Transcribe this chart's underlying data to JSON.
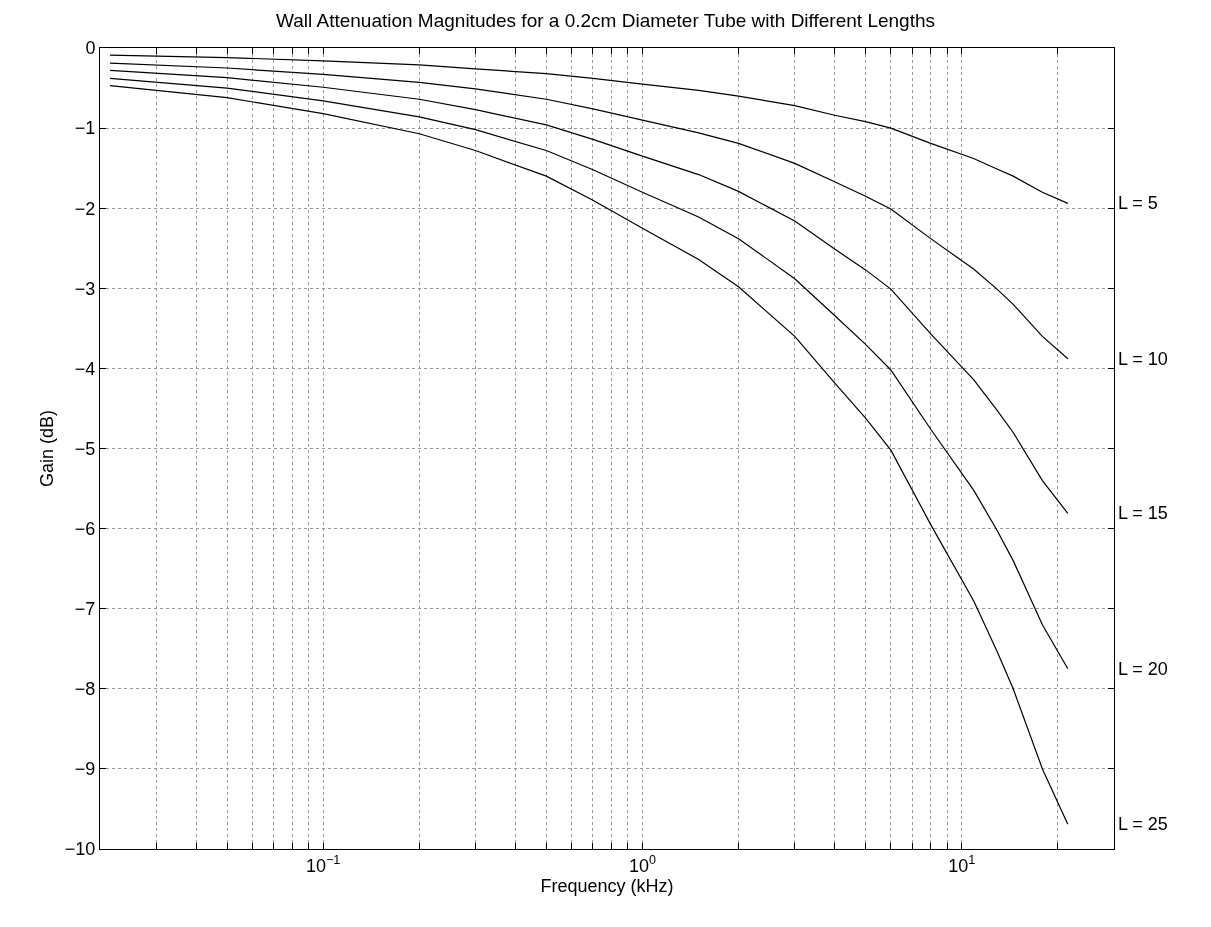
{
  "chart_data": {
    "type": "line",
    "title": "Wall Attenuation Magnitudes for a 0.2cm Diameter Tube with Different Lengths",
    "xlabel": "Frequency (kHz)",
    "ylabel": "Gain (dB)",
    "log": "x",
    "grid": true,
    "line_style": "solid",
    "marker": "none",
    "legend": "right",
    "x": [
      0.0215,
      0.05,
      0.1,
      0.2,
      0.3,
      0.5,
      0.7,
      1,
      1.5,
      2,
      3,
      4,
      5,
      6,
      8,
      10.9,
      12.9,
      14.5,
      17.9,
      21.5
    ],
    "xlim": [
      0.02,
      30
    ],
    "ylim": [
      -10,
      0
    ],
    "yticks": [
      -10,
      -9,
      -8,
      -7,
      -6,
      -5,
      -4,
      -3,
      -2,
      -1,
      0
    ],
    "xticks": [
      {
        "value": 0.03,
        "label": null
      },
      {
        "value": 0.04,
        "label": null
      },
      {
        "value": 0.05,
        "label": null
      },
      {
        "value": 0.06,
        "label": null
      },
      {
        "value": 0.07,
        "label": null
      },
      {
        "value": 0.08,
        "label": null
      },
      {
        "value": 0.09,
        "label": null
      },
      {
        "value": 0.1,
        "label": "10$^{−1}$"
      },
      {
        "value": 0.2,
        "label": null
      },
      {
        "value": 0.3,
        "label": null
      },
      {
        "value": 0.4,
        "label": null
      },
      {
        "value": 0.5,
        "label": null
      },
      {
        "value": 0.6,
        "label": null
      },
      {
        "value": 0.7,
        "label": null
      },
      {
        "value": 0.8,
        "label": null
      },
      {
        "value": 0.9,
        "label": null
      },
      {
        "value": 1,
        "label": "10$^{0}$"
      },
      {
        "value": 2,
        "label": null
      },
      {
        "value": 3,
        "label": null
      },
      {
        "value": 4,
        "label": null
      },
      {
        "value": 5,
        "label": null
      },
      {
        "value": 6,
        "label": null
      },
      {
        "value": 7,
        "label": null
      },
      {
        "value": 8,
        "label": null
      },
      {
        "value": 9,
        "label": null
      },
      {
        "value": 10,
        "label": "10$^{1}$"
      },
      {
        "value": 20,
        "label": null
      }
    ],
    "series": [
      {
        "name": "L = 5",
        "color": "#000000",
        "values": [
          -0.09,
          -0.12,
          -0.16,
          -0.21,
          -0.26,
          -0.32,
          -0.38,
          -0.45,
          -0.53,
          -0.6,
          -0.72,
          -0.84,
          -0.92,
          -1.0,
          -1.19,
          -1.38,
          -1.51,
          -1.6,
          -1.8,
          -1.94
        ]
      },
      {
        "name": "L = 10",
        "color": "#000000",
        "values": [
          -0.19,
          -0.25,
          -0.33,
          -0.43,
          -0.51,
          -0.64,
          -0.76,
          -0.9,
          -1.06,
          -1.19,
          -1.44,
          -1.67,
          -1.85,
          -2.01,
          -2.38,
          -2.76,
          -3.01,
          -3.2,
          -3.6,
          -3.88
        ]
      },
      {
        "name": "L = 15",
        "color": "#000000",
        "values": [
          -0.28,
          -0.37,
          -0.49,
          -0.64,
          -0.77,
          -0.96,
          -1.14,
          -1.35,
          -1.58,
          -1.79,
          -2.16,
          -2.51,
          -2.77,
          -3.01,
          -3.57,
          -4.14,
          -4.52,
          -4.8,
          -5.4,
          -5.81
        ]
      },
      {
        "name": "L = 20",
        "color": "#000000",
        "values": [
          -0.38,
          -0.5,
          -0.66,
          -0.86,
          -1.02,
          -1.28,
          -1.52,
          -1.8,
          -2.11,
          -2.38,
          -2.88,
          -3.34,
          -3.7,
          -4.02,
          -4.76,
          -5.52,
          -6.02,
          -6.4,
          -7.2,
          -7.75
        ]
      },
      {
        "name": "L = 25",
        "color": "#000000",
        "values": [
          -0.47,
          -0.62,
          -0.82,
          -1.07,
          -1.28,
          -1.6,
          -1.9,
          -2.25,
          -2.64,
          -2.98,
          -3.6,
          -4.18,
          -4.62,
          -5.02,
          -5.95,
          -6.9,
          -7.53,
          -8.0,
          -9.0,
          -9.69
        ]
      }
    ]
  }
}
